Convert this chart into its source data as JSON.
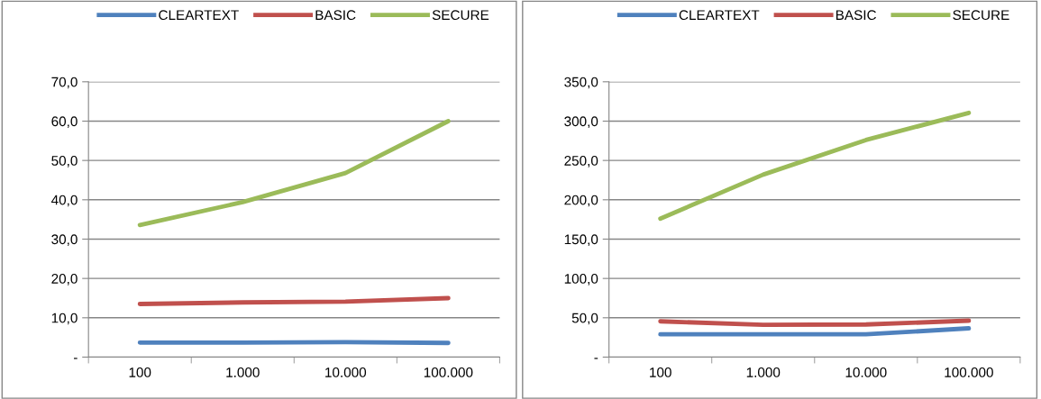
{
  "chart_data": [
    {
      "type": "line",
      "categories": [
        "100",
        "1.000",
        "10.000",
        "100.000"
      ],
      "ylim": [
        0,
        70
      ],
      "yticks": [
        {
          "value": 0,
          "label": "-"
        },
        {
          "value": 10,
          "label": "10,0"
        },
        {
          "value": 20,
          "label": "20,0"
        },
        {
          "value": 30,
          "label": "30,0"
        },
        {
          "value": 40,
          "label": "40,0"
        },
        {
          "value": 50,
          "label": "50,0"
        },
        {
          "value": 60,
          "label": "60,0"
        },
        {
          "value": 70,
          "label": "70,0"
        }
      ],
      "grid": "y",
      "legend": "top",
      "marker": "none",
      "line_style": "solid",
      "series": [
        {
          "name": "CLEARTEXT",
          "color": "#4f81bd",
          "values": [
            3.7,
            3.7,
            3.8,
            3.6
          ]
        },
        {
          "name": "BASIC",
          "color": "#c0504d",
          "values": [
            13.5,
            13.9,
            14.1,
            15.0
          ]
        },
        {
          "name": "SECURE",
          "color": "#9bbb59",
          "values": [
            33.6,
            39.4,
            46.8,
            60.0
          ]
        }
      ]
    },
    {
      "type": "line",
      "categories": [
        "100",
        "1.000",
        "10.000",
        "100.000"
      ],
      "ylim": [
        0,
        350
      ],
      "yticks": [
        {
          "value": 0,
          "label": "-"
        },
        {
          "value": 50,
          "label": "50,0"
        },
        {
          "value": 100,
          "label": "100,0"
        },
        {
          "value": 150,
          "label": "150,0"
        },
        {
          "value": 200,
          "label": "200,0"
        },
        {
          "value": 250,
          "label": "250,0"
        },
        {
          "value": 300,
          "label": "300,0"
        },
        {
          "value": 350,
          "label": "350,0"
        }
      ],
      "grid": "y",
      "legend": "top",
      "marker": "none",
      "line_style": "solid",
      "series": [
        {
          "name": "CLEARTEXT",
          "color": "#4f81bd",
          "values": [
            29,
            29,
            29,
            36.6
          ]
        },
        {
          "name": "BASIC",
          "color": "#c0504d",
          "values": [
            45.5,
            41,
            41.5,
            46.3
          ]
        },
        {
          "name": "SECURE",
          "color": "#9bbb59",
          "values": [
            176,
            232,
            276,
            310.5
          ]
        }
      ]
    }
  ]
}
